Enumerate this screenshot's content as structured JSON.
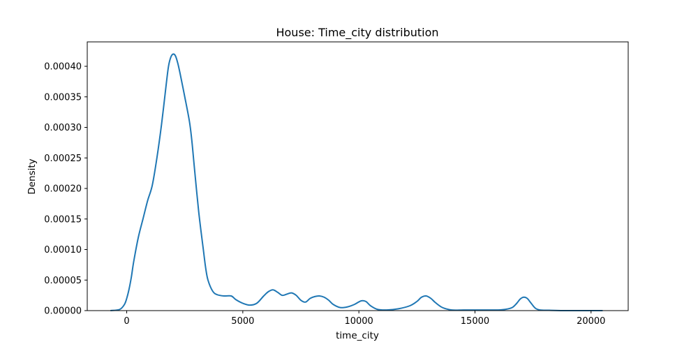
{
  "chart_data": {
    "type": "line",
    "title": "House: Time_city distribution",
    "xlabel": "time_city",
    "ylabel": "Density",
    "xlim": [
      -1700,
      21600
    ],
    "ylim": [
      0,
      0.00044
    ],
    "grid": false,
    "x_ticks": [
      0,
      5000,
      10000,
      15000,
      20000
    ],
    "x_tick_labels": [
      "0",
      "5000",
      "10000",
      "15000",
      "20000"
    ],
    "y_ticks": [
      0,
      5e-05,
      0.0001,
      0.00015,
      0.0002,
      0.00025,
      0.0003,
      0.00035,
      0.0004
    ],
    "y_tick_labels": [
      "0.00000",
      "0.00005",
      "0.00010",
      "0.00015",
      "0.00020",
      "0.00025",
      "0.00030",
      "0.00035",
      "0.00040"
    ],
    "series": [
      {
        "color": "#1f77b4",
        "x": [
          -700,
          -300,
          -100,
          0,
          100,
          200,
          300,
          500,
          700,
          900,
          1100,
          1300,
          1500,
          1700,
          1800,
          1900,
          2000,
          2100,
          2200,
          2300,
          2500,
          2700,
          2800,
          2900,
          3000,
          3100,
          3200,
          3300,
          3400,
          3500,
          3700,
          3900,
          4200,
          4500,
          4700,
          5000,
          5300,
          5600,
          5900,
          6100,
          6300,
          6500,
          6700,
          6900,
          7100,
          7300,
          7500,
          7700,
          7900,
          8100,
          8300,
          8500,
          8700,
          8900,
          9200,
          9500,
          9800,
          10100,
          10300,
          10500,
          10800,
          11200,
          11700,
          12200,
          12500,
          12700,
          12900,
          13100,
          13300,
          13600,
          14000,
          14500,
          15000,
          15500,
          16000,
          16300,
          16600,
          16800,
          16950,
          17100,
          17250,
          17400,
          17600,
          17800,
          18200,
          18800,
          19500,
          20000,
          20500
        ],
        "y": [
          0,
          2e-06,
          1e-05,
          2e-05,
          3.5e-05,
          5.5e-05,
          8e-05,
          0.00012,
          0.00015,
          0.00018,
          0.000205,
          0.00025,
          0.000305,
          0.00037,
          0.0004,
          0.000415,
          0.00042,
          0.000417,
          0.000405,
          0.000388,
          0.00035,
          0.00031,
          0.00028,
          0.00024,
          0.0002,
          0.000162,
          0.00013,
          0.0001,
          7e-05,
          5e-05,
          3.2e-05,
          2.6e-05,
          2.4e-05,
          2.4e-05,
          1.8e-05,
          1.2e-05,
          9e-06,
          1.2e-05,
          2.4e-05,
          3.1e-05,
          3.4e-05,
          3e-05,
          2.5e-05,
          2.7e-05,
          2.9e-05,
          2.5e-05,
          1.7e-05,
          1.4e-05,
          2e-05,
          2.3e-05,
          2.4e-05,
          2.2e-05,
          1.7e-05,
          1e-05,
          5e-06,
          6e-06,
          1e-05,
          1.6e-05,
          1.5e-05,
          8e-06,
          2e-06,
          1e-06,
          3e-06,
          8e-06,
          1.5e-05,
          2.2e-05,
          2.4e-05,
          2e-05,
          1.3e-05,
          5e-06,
          1e-06,
          1e-06,
          1e-06,
          1e-06,
          1e-06,
          2e-06,
          5e-06,
          1.2e-05,
          1.9e-05,
          2.2e-05,
          2e-05,
          1.3e-05,
          4e-06,
          1e-06,
          5e-07,
          0,
          0,
          0,
          0
        ]
      }
    ]
  }
}
